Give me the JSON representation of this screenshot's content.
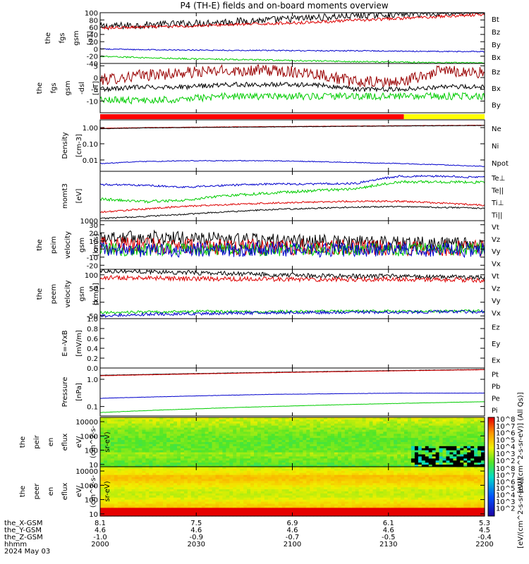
{
  "title": "P4 (TH-E) fields and on-board moments overview",
  "chart_data": [
    {
      "panel": "fgs_gsm",
      "type": "line",
      "ylabel": [
        "the",
        "fgs",
        "gsm",
        "[nT]"
      ],
      "yscale": "linear",
      "ylim": [
        -40,
        100
      ],
      "yticks": [
        100,
        80,
        60,
        40,
        20,
        0,
        -20,
        -40
      ],
      "series": [
        {
          "name": "Bt",
          "color": "#000000",
          "values": [
            62,
            66,
            70,
            75,
            80,
            86,
            92,
            97,
            100,
            102
          ]
        },
        {
          "name": "Bz",
          "color": "#dd0000",
          "values": [
            58,
            60,
            63,
            67,
            70,
            74,
            79,
            84,
            90,
            95
          ]
        },
        {
          "name": "By",
          "color": "#00cc00",
          "values": [
            -20,
            -24,
            -27,
            -29,
            -31,
            -33,
            -35,
            -36,
            -38,
            -39
          ]
        },
        {
          "name": "Bx",
          "color": "#0000cc",
          "values": [
            0,
            -2,
            -3,
            -4,
            -4,
            -5,
            -5,
            -6,
            -7,
            -7
          ]
        }
      ]
    },
    {
      "panel": "fgs_gsm_dsl",
      "type": "line",
      "ylabel": [
        "the",
        "fgs",
        "gsm",
        "-dsl",
        "[nT]"
      ],
      "yscale": "linear",
      "ylim": [
        -15,
        6
      ],
      "yticks": [
        5,
        0,
        -5,
        -10
      ],
      "series": [
        {
          "name": "Bz",
          "color": "#990000",
          "values": [
            -1,
            1,
            2,
            3,
            3,
            2,
            -2,
            -2,
            3,
            2
          ]
        },
        {
          "name": "Bx",
          "color": "#000000",
          "values": [
            -5,
            -4,
            -4,
            -3,
            -3,
            -3,
            -5,
            -5,
            -4,
            -4
          ]
        },
        {
          "name": "By",
          "color": "#00cc00",
          "values": [
            -9,
            -10,
            -9,
            -8,
            -8,
            -8,
            -8,
            -8,
            -8,
            -8
          ]
        }
      ]
    },
    {
      "panel": "mode_bar",
      "type": "bar",
      "segments": [
        {
          "from": 0.0,
          "to": 0.79,
          "color": "#ff0000"
        },
        {
          "from": 0.79,
          "to": 1.0,
          "color": "#ffff00"
        }
      ]
    },
    {
      "panel": "density",
      "type": "line",
      "ylabel": [
        "Density",
        "[cm-3]"
      ],
      "yscale": "log",
      "ylim": [
        0.002,
        3
      ],
      "yticks": [
        1.0,
        0.1,
        0.01
      ],
      "ytick_labels": [
        "1.00",
        "0.10",
        "0.01"
      ],
      "series": [
        {
          "name": "Ne",
          "color": "#dd0000",
          "values": [
            0.9,
            1.0,
            1.05,
            1.1,
            1.15,
            1.2,
            1.25,
            1.3,
            1.35,
            1.4
          ]
        },
        {
          "name": "Ni",
          "color": "#000000",
          "values": [
            0.85,
            0.95,
            1.0,
            1.05,
            1.1,
            1.15,
            1.2,
            1.25,
            1.3,
            1.35
          ]
        },
        {
          "name": "Npot",
          "color": "#0000cc",
          "values": [
            0.006,
            0.008,
            0.009,
            0.009,
            0.009,
            0.008,
            0.007,
            0.006,
            0.005,
            0.004
          ]
        }
      ]
    },
    {
      "panel": "moments_temperature",
      "type": "line",
      "ylabel": [
        "momt3",
        "[eV]"
      ],
      "yscale": "log",
      "ylim": [
        1000,
        60000
      ],
      "yticks": [
        1000
      ],
      "ytick_labels": [
        "1000"
      ],
      "series": [
        {
          "name": "Te⊥",
          "color": "#dd0000",
          "values": [
            2000,
            2600,
            3300,
            3800,
            4300,
            4700,
            5000,
            5000,
            4300,
            3600
          ]
        },
        {
          "name": "Te||",
          "color": "#000000",
          "values": [
            1200,
            1400,
            1700,
            2100,
            2500,
            2800,
            3100,
            3200,
            3000,
            2800
          ]
        },
        {
          "name": "Ti⊥",
          "color": "#0000cc",
          "values": [
            20000,
            19000,
            16000,
            19000,
            21000,
            21000,
            22000,
            40000,
            40000,
            36000
          ]
        },
        {
          "name": "Ti||",
          "color": "#00cc00",
          "values": [
            6000,
            4800,
            5500,
            8000,
            10000,
            12000,
            14000,
            25000,
            25000,
            24000
          ]
        }
      ]
    },
    {
      "panel": "peim_velocity",
      "type": "line",
      "ylabel": [
        "the",
        "peim",
        "velocity",
        "gsm",
        "[km/s]"
      ],
      "yscale": "linear",
      "ylim": [
        -25,
        35
      ],
      "yticks": [
        30,
        20,
        10,
        0,
        -10,
        -20
      ],
      "series": [
        {
          "name": "Vt",
          "color": "#000000",
          "values": [
            15,
            14,
            13,
            12,
            10,
            9,
            8,
            7,
            6,
            5
          ]
        },
        {
          "name": "Vz",
          "color": "#dd0000",
          "values": [
            5,
            4,
            3,
            3,
            2,
            2,
            2,
            1,
            1,
            1
          ]
        },
        {
          "name": "Vy",
          "color": "#00cc00",
          "values": [
            0,
            -1,
            0,
            0,
            -1,
            0,
            0,
            -1,
            0,
            0
          ]
        },
        {
          "name": "Vx",
          "color": "#0000cc",
          "values": [
            0,
            -2,
            -1,
            -1,
            0,
            -1,
            -1,
            0,
            -1,
            -1
          ]
        }
      ]
    },
    {
      "panel": "peem_velocity",
      "type": "line",
      "ylabel": [
        "the",
        "peem",
        "velocity",
        "gsm",
        "[km/s]"
      ],
      "yscale": "linear",
      "ylim": [
        -60,
        120
      ],
      "yticks": [
        100,
        50,
        0,
        -50
      ],
      "series": [
        {
          "name": "Vt",
          "color": "#000000",
          "values": [
            115,
            112,
            108,
            105,
            100,
            97,
            95,
            95,
            92,
            90
          ]
        },
        {
          "name": "Vz",
          "color": "#dd0000",
          "values": [
            90,
            88,
            86,
            85,
            84,
            83,
            83,
            84,
            82,
            80
          ]
        },
        {
          "name": "Vy",
          "color": "#00cc00",
          "values": [
            -38,
            -36,
            -34,
            -34,
            -34,
            -33,
            -33,
            -33,
            -33,
            -32
          ]
        },
        {
          "name": "Vx",
          "color": "#0000cc",
          "values": [
            -50,
            -45,
            -42,
            -40,
            -38,
            -37,
            -36,
            -36,
            -35,
            -35
          ]
        }
      ]
    },
    {
      "panel": "efield",
      "type": "line",
      "ylabel": [
        "E=-VxB",
        "[mV/m]"
      ],
      "yscale": "linear",
      "ylim": [
        0.0,
        1.0
      ],
      "yticks": [
        1.0,
        0.8,
        0.6,
        0.4,
        0.2,
        0.0
      ],
      "ytick_labels": [
        "1.0",
        "0.8",
        "0.6",
        "0.4",
        "0.2",
        "0.0"
      ],
      "series": [
        {
          "name": "Ez",
          "color": "#dd0000",
          "values": []
        },
        {
          "name": "Ey",
          "color": "#00cc00",
          "values": []
        },
        {
          "name": "Ex",
          "color": "#0000cc",
          "values": []
        }
      ]
    },
    {
      "panel": "pressure",
      "type": "line",
      "ylabel": [
        "Pressure",
        "[nPa]"
      ],
      "yscale": "log",
      "ylim": [
        0.045,
        2.6
      ],
      "yticks": [
        1.0,
        0.1
      ],
      "ytick_labels": [
        "1.0",
        "0.1"
      ],
      "series": [
        {
          "name": "Pt",
          "color": "#000000",
          "values": [
            1.4,
            1.5,
            1.6,
            1.7,
            1.8,
            1.9,
            2.0,
            2.1,
            2.2,
            2.3
          ]
        },
        {
          "name": "Pb",
          "color": "#dd0000",
          "values": [
            1.35,
            1.45,
            1.55,
            1.65,
            1.75,
            1.85,
            1.95,
            2.05,
            2.15,
            2.25
          ]
        },
        {
          "name": "Pe",
          "color": "#0000cc",
          "values": [
            0.2,
            0.22,
            0.24,
            0.26,
            0.28,
            0.29,
            0.3,
            0.31,
            0.31,
            0.31
          ]
        },
        {
          "name": "Pi",
          "color": "#00cc00",
          "values": [
            0.06,
            0.07,
            0.08,
            0.09,
            0.1,
            0.11,
            0.12,
            0.13,
            0.14,
            0.15
          ]
        }
      ]
    },
    {
      "panel": "peir_en_eflux",
      "type": "heatmap",
      "ylabel": [
        "the",
        "peir",
        "en",
        "eflux",
        "eV/",
        "(cm^2-s-",
        "sr-eV)"
      ],
      "yscale": "log",
      "ylim": [
        7,
        20000
      ],
      "yticks": [
        10000,
        1000,
        100,
        10
      ],
      "ytick_labels": [
        "10000",
        "1000",
        "100",
        "10"
      ]
    },
    {
      "panel": "peer_en_eflux",
      "type": "heatmap",
      "ylabel": [
        "the",
        "peer",
        "en",
        "eflux",
        "eV/",
        "(cm^2-s-",
        "sr-eV)"
      ],
      "yscale": "log",
      "ylim": [
        7,
        20000
      ],
      "yticks": [
        10000,
        1000,
        100,
        10
      ],
      "ytick_labels": [
        "10000",
        "1000",
        "100",
        "10"
      ]
    }
  ],
  "colorbar": {
    "label": "[eV/(cm^2-s-sr-eV)]",
    "label_overlap": "[eV/(cm^2-s-sr-eV)] (All Qs)]",
    "ticks_top": [
      "10^8",
      "10^7",
      "10^6",
      "10^5",
      "10^4",
      "10^3",
      "10^2"
    ],
    "ticks_bottom": [
      "10^8",
      "10^7",
      "10^6",
      "10^5",
      "10^4",
      "10^3",
      "10^2"
    ]
  },
  "footer": {
    "rows": [
      {
        "label": "the_X-GSM",
        "values": [
          "8.1",
          "7.5",
          "6.9",
          "6.1",
          "5.3"
        ]
      },
      {
        "label": "the_Y-GSM",
        "values": [
          "4.6",
          "4.6",
          "4.6",
          "4.6",
          "4.5"
        ]
      },
      {
        "label": "the_Z-GSM",
        "values": [
          "-1.0",
          "-0.9",
          "-0.7",
          "-0.5",
          "-0.4"
        ]
      },
      {
        "label": "hhmm",
        "values": [
          "2000",
          "2030",
          "2100",
          "2130",
          "2200"
        ]
      }
    ],
    "date": "2024 May 03"
  }
}
